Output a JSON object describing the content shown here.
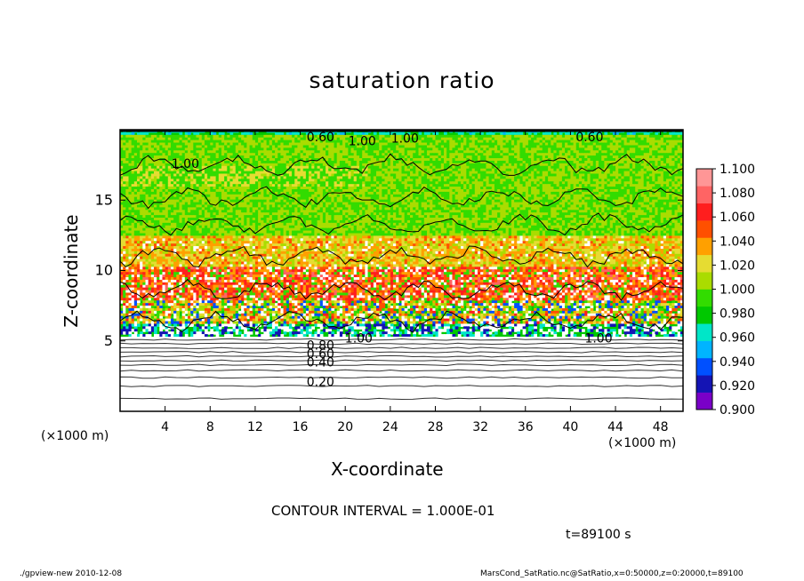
{
  "chart_data": {
    "type": "heatmap",
    "title": "saturation ratio",
    "xlabel": "X-coordinate",
    "ylabel": "Z-coordinate",
    "x_unit_note": "(×1000 m)",
    "xlim": [
      0,
      50
    ],
    "ylim": [
      0,
      20
    ],
    "x_ticks": [
      4,
      8,
      12,
      16,
      20,
      24,
      28,
      32,
      36,
      40,
      44,
      48
    ],
    "y_ticks": [
      5,
      10,
      15
    ],
    "colorbar": {
      "min": 0.9,
      "max": 1.1,
      "labels": [
        "1.100",
        "1.080",
        "1.060",
        "1.040",
        "1.020",
        "1.000",
        "0.980",
        "0.960",
        "0.940",
        "0.920",
        "0.900"
      ],
      "colors": [
        "#7a00c8",
        "#1414b4",
        "#0050ff",
        "#00b4ff",
        "#00e6c8",
        "#00c800",
        "#32dc00",
        "#aadc00",
        "#e6dc32",
        "#ffa000",
        "#ff5000",
        "#ff1e1e",
        "#ff6464",
        "#ff9696"
      ]
    },
    "contour_labels": [
      {
        "text": "0.60",
        "x": 17.8,
        "z": 19.5
      },
      {
        "text": "1.00",
        "x": 21.5,
        "z": 19.2
      },
      {
        "text": "1.00",
        "x": 25.3,
        "z": 19.4
      },
      {
        "text": "0.60",
        "x": 41.7,
        "z": 19.5
      },
      {
        "text": "1.00",
        "x": 5.8,
        "z": 17.6
      },
      {
        "text": "1.00",
        "x": 21.2,
        "z": 5.2
      },
      {
        "text": "1.00",
        "x": 42.5,
        "z": 5.2
      },
      {
        "text": "0.80",
        "x": 17.8,
        "z": 4.7
      },
      {
        "text": "0.60",
        "x": 17.8,
        "z": 4.1
      },
      {
        "text": "0.40",
        "x": 17.8,
        "z": 3.5
      },
      {
        "text": "0.20",
        "x": 17.8,
        "z": 2.1
      }
    ],
    "contour_interval": "CONTOUR INTERVAL = 1.000E-01",
    "time_label": "t=89100 s"
  },
  "footer": {
    "left": "./gpview-new  2010-12-08",
    "right": "MarsCond_SatRatio.nc@SatRatio,x=0:50000,z=0:20000,t=89100"
  }
}
